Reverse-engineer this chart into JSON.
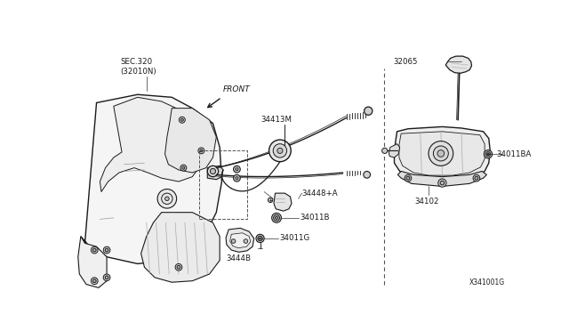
{
  "bg_color": "#ffffff",
  "line_color": "#1a1a1a",
  "gray": "#888888",
  "light_gray": "#cccccc",
  "fig_width": 6.4,
  "fig_height": 3.72,
  "dpi": 100,
  "diagram_id": "X341001G",
  "labels": {
    "sec320": "SEC.320\n(32010N)",
    "front": "FRONT",
    "part_34413M": "34413M",
    "part_34448A": "34448+A",
    "part_34011B": "34011B",
    "part_34011G": "34011G",
    "part_3444B": "3444B",
    "part_32065": "32065",
    "part_34011BA": "34011BA",
    "part_34102": "34102"
  }
}
